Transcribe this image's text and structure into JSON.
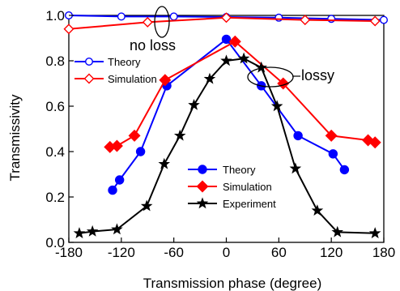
{
  "chart_data": {
    "type": "line",
    "title": "",
    "xlabel": "Transmission phase (degree)",
    "ylabel": "Transmissivity",
    "xlim": [
      -180,
      180
    ],
    "ylim": [
      0,
      1.0
    ],
    "xticks": [
      -180,
      -120,
      -60,
      0,
      60,
      120,
      180
    ],
    "yticks": [
      0.0,
      0.2,
      0.4,
      0.6,
      0.8,
      1.0
    ],
    "xtick_labels": [
      "-180",
      "-120",
      "-60",
      "0",
      "60",
      "120",
      "180"
    ],
    "ytick_labels": [
      "0.0",
      "0.2",
      "0.4",
      "0.6",
      "0.8",
      "1.0"
    ],
    "grid": false,
    "series": [
      {
        "name": "Theory",
        "group": "no-loss",
        "color": "#0000ff",
        "marker": "circle-open",
        "x": [
          -180,
          -120,
          -60,
          0,
          60,
          120,
          180
        ],
        "y": [
          1.0,
          0.995,
          0.995,
          0.993,
          0.99,
          0.985,
          0.98
        ]
      },
      {
        "name": "Simulation",
        "group": "no-loss",
        "color": "#ff0000",
        "marker": "diamond-open",
        "x": [
          -180,
          -90,
          0,
          90,
          170
        ],
        "y": [
          0.94,
          0.97,
          0.99,
          0.98,
          0.975
        ]
      },
      {
        "name": "Theory",
        "group": "lossy",
        "color": "#0000ff",
        "marker": "circle",
        "x": [
          -130,
          -122,
          -98,
          -68,
          0,
          40,
          82,
          122,
          135
        ],
        "y": [
          0.23,
          0.275,
          0.4,
          0.69,
          0.895,
          0.69,
          0.47,
          0.39,
          0.32
        ]
      },
      {
        "name": "Simulation",
        "group": "lossy",
        "color": "#ff0000",
        "marker": "diamond",
        "x": [
          -133,
          -125,
          -105,
          -70,
          10,
          65,
          120,
          162,
          170
        ],
        "y": [
          0.42,
          0.425,
          0.47,
          0.715,
          0.885,
          0.7,
          0.47,
          0.45,
          0.44
        ]
      },
      {
        "name": "Experiment",
        "group": "lossy",
        "color": "#000000",
        "marker": "star",
        "x": [
          -168,
          -153,
          -125,
          -91,
          -71,
          -53,
          -37,
          -19,
          0,
          20,
          40,
          58,
          79,
          104,
          127,
          170
        ],
        "y": [
          0.04,
          0.048,
          0.057,
          0.16,
          0.345,
          0.47,
          0.605,
          0.72,
          0.8,
          0.81,
          0.77,
          0.6,
          0.325,
          0.14,
          0.045,
          0.04
        ]
      }
    ],
    "legends": [
      {
        "placement": "upper-left",
        "entries": [
          "Theory",
          "Simulation"
        ]
      },
      {
        "placement": "lower-center",
        "entries": [
          "Theory",
          "Simulation",
          "Experiment"
        ]
      }
    ],
    "annotations": [
      {
        "text": "no loss",
        "target": "no-loss curves near T = 1.0"
      },
      {
        "text": "lossy",
        "target": "lossy curves near the peak"
      }
    ]
  }
}
